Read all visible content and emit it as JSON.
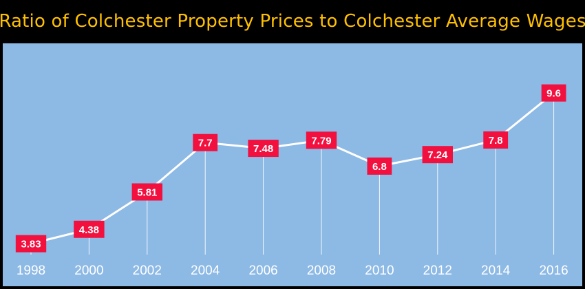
{
  "chart_data": {
    "type": "line",
    "title": "Ratio of Colchester Property Prices to Colchester Average Wages",
    "xlabel": "",
    "ylabel": "",
    "categories": [
      "1998",
      "2000",
      "2002",
      "2004",
      "2006",
      "2008",
      "2010",
      "2012",
      "2014",
      "2016"
    ],
    "series": [
      {
        "values": [
          3.83,
          4.38,
          5.81,
          7.7,
          7.48,
          7.79,
          6.8,
          7.24,
          7.8,
          9.6
        ]
      }
    ],
    "data_labels": [
      "3.83",
      "4.38",
      "5.81",
      "7.7",
      "7.48",
      "7.79",
      "6.8",
      "7.24",
      "7.8",
      "9.6"
    ],
    "ylim": [
      2.2,
      11.5
    ],
    "grid": false,
    "legend": "none",
    "colors": {
      "background": "#000000",
      "plot": "#8DB9E5",
      "title": "#FFC000",
      "line": "#FFFFFF",
      "label_box": "#F2103F",
      "drop_line": "#FFFFFF"
    }
  }
}
